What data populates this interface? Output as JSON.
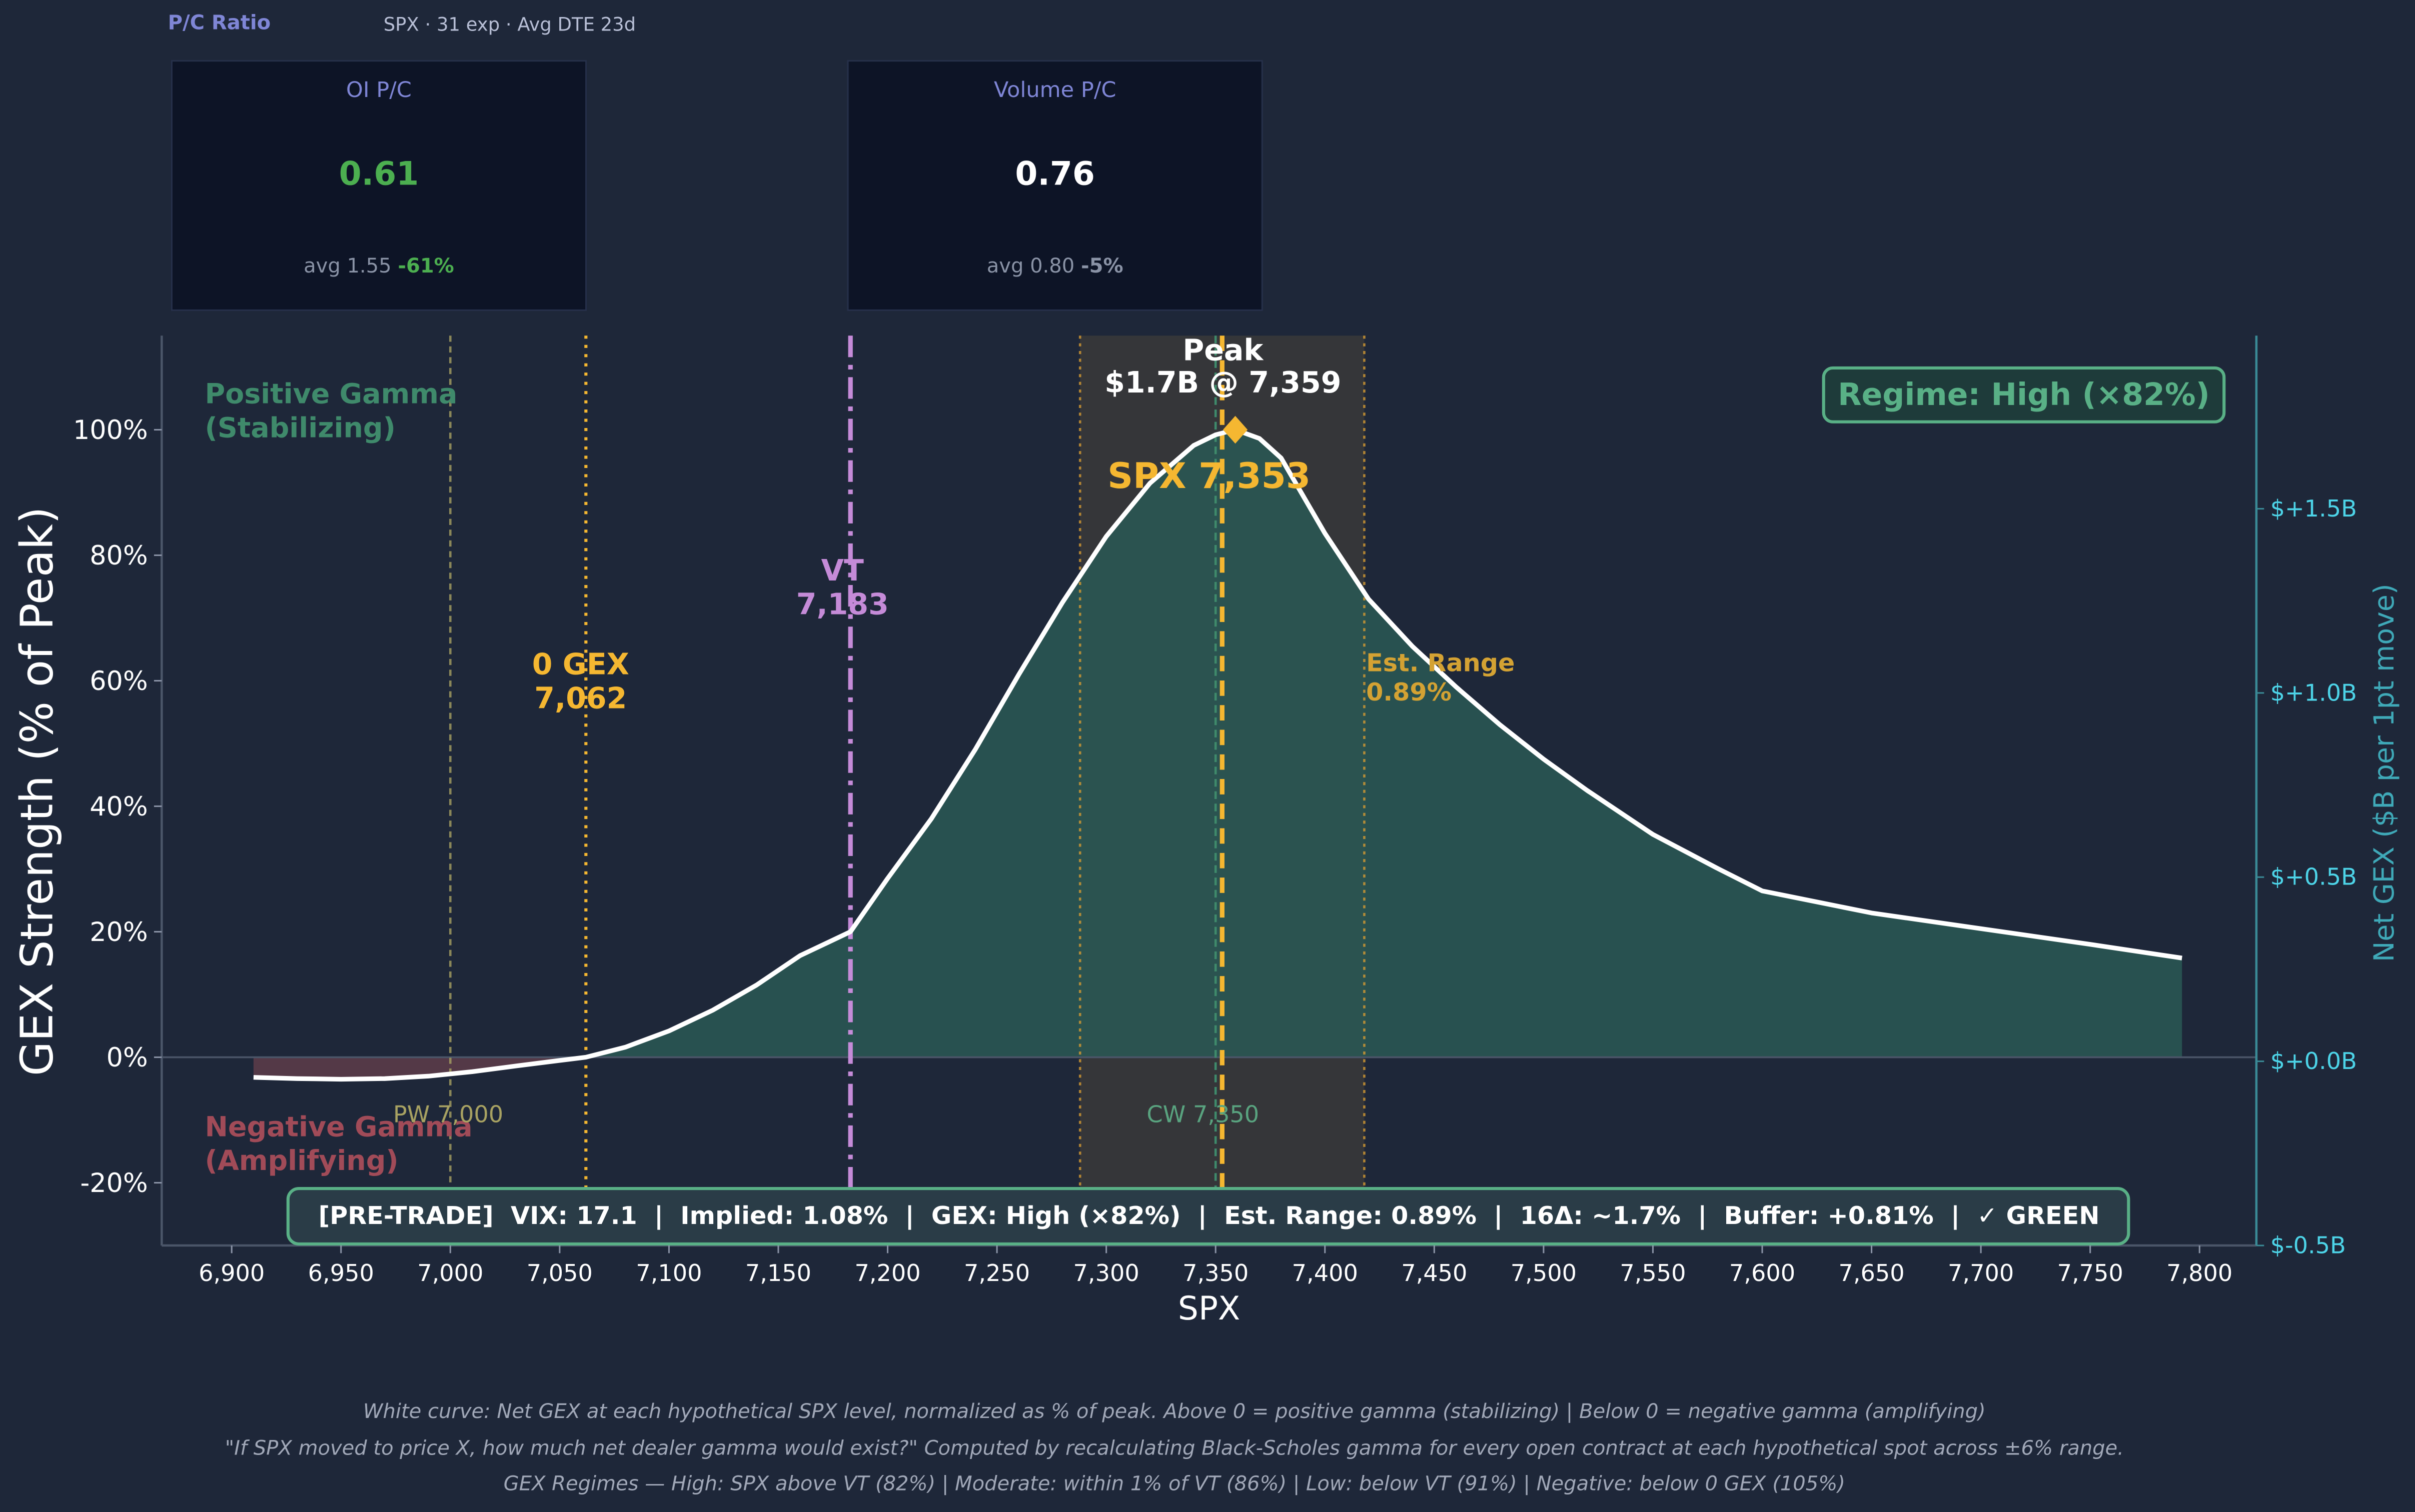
{
  "pc": {
    "title": "P/C Ratio",
    "subtitle": "SPX · 31 exp · Avg DTE 23d",
    "cards": [
      {
        "label": "OI P/C",
        "value": "0.61",
        "avg": "avg 1.55",
        "change": "-61%",
        "value_color": "#4caf50",
        "change_color": "#4caf50"
      },
      {
        "label": "Volume P/C",
        "value": "0.76",
        "avg": "avg 0.80",
        "change": "-5%",
        "value_color": "#ffffff",
        "change_color": "#8a93a6"
      }
    ]
  },
  "chart_data": {
    "type": "area",
    "xlabel": "SPX",
    "ylabel": "GEX Strength (% of Peak)",
    "y2label": "Net GEX ($B per 1pt move)",
    "xlim": [
      6868,
      7826
    ],
    "ylim": [
      -30,
      115
    ],
    "y2lim": [
      -0.5,
      1.97
    ],
    "xticks": [
      6900,
      6950,
      7000,
      7050,
      7100,
      7150,
      7200,
      7250,
      7300,
      7350,
      7400,
      7450,
      7500,
      7550,
      7600,
      7650,
      7700,
      7750,
      7800
    ],
    "xtick_labels": [
      "6,900",
      "6,950",
      "7,000",
      "7,050",
      "7,100",
      "7,150",
      "7,200",
      "7,250",
      "7,300",
      "7,350",
      "7,400",
      "7,450",
      "7,500",
      "7,550",
      "7,600",
      "7,650",
      "7,700",
      "7,750",
      "7,800"
    ],
    "yticks": [
      -20,
      0,
      20,
      40,
      60,
      80,
      100
    ],
    "ytick_labels": [
      "-20%",
      "0%",
      "20%",
      "40%",
      "60%",
      "80%",
      "100%"
    ],
    "y2ticks": [
      -0.5,
      0,
      0.5,
      1.0,
      1.5
    ],
    "y2tick_labels": [
      "$-0.5B",
      "$+0.0B",
      "$+0.5B",
      "$+1.0B",
      "$+1.5B"
    ],
    "series": [
      {
        "x": [
          6910,
          6930,
          6950,
          6970,
          6990,
          7010,
          7030,
          7050,
          7062,
          7080,
          7100,
          7120,
          7140,
          7160,
          7183,
          7200,
          7220,
          7240,
          7260,
          7280,
          7300,
          7320,
          7340,
          7350,
          7359,
          7370,
          7380,
          7400,
          7420,
          7440,
          7460,
          7480,
          7500,
          7520,
          7550,
          7580,
          7600,
          7650,
          7700,
          7750,
          7792
        ],
        "y": [
          -3.2,
          -3.4,
          -3.5,
          -3.4,
          -3.0,
          -2.3,
          -1.4,
          -0.5,
          0,
          1.6,
          4.2,
          7.5,
          11.5,
          16.2,
          20,
          28.5,
          38,
          49,
          61,
          72.5,
          83,
          91.5,
          97.5,
          99.2,
          100,
          98.6,
          95.5,
          83.5,
          73,
          65.5,
          59,
          53,
          47.5,
          42.5,
          35.5,
          30,
          26.5,
          23,
          20.5,
          18,
          15.8
        ]
      }
    ],
    "gex_zero": {
      "label": "0 GEX",
      "value_label": "7,062",
      "x": 7062
    },
    "vt": {
      "label": "VT",
      "value_label": "7,183",
      "x": 7183
    },
    "pw": {
      "label": "PW 7,000",
      "x": 7000
    },
    "cw": {
      "label": "CW 7,350",
      "x": 7350
    },
    "spot": {
      "label": "SPX 7,353",
      "x": 7353
    },
    "peak": {
      "label": "Peak",
      "value_label": "$1.7B @ 7,359",
      "x": 7359,
      "y": 100
    },
    "est_range": {
      "label": "Est. Range",
      "value_label": "0.89%",
      "x0": 7288,
      "x1": 7418
    },
    "regime": "Regime: High (×82%)",
    "zone_pos": [
      "Positive Gamma",
      "(Stabilizing)"
    ],
    "zone_neg": [
      "Negative Gamma",
      "(Amplifying)"
    ],
    "pretrade": "[PRE-TRADE]  VIX: 17.1  |  Implied: 1.08%  |  GEX: High (×82%)  |  Est. Range: 0.89%  |  16Δ: ~1.7%  |  Buffer: +0.81%  |  ✓ GREEN"
  },
  "colors": {
    "curve": "#ffffff",
    "fill_pos": "#2a5955",
    "fill_neg": "#5a3c49",
    "gold": "#f5b731",
    "violet": "#c58bd8",
    "green": "#59b086",
    "cyan": "#4dd4e8",
    "axis": "#4a5568"
  },
  "footer": [
    "White curve: Net GEX at each hypothetical SPX level, normalized as % of peak.  Above 0 = positive gamma (stabilizing)  |  Below 0 = negative gamma (amplifying)",
    "\"If SPX moved to price X, how much net dealer gamma would exist?\" Computed by recalculating Black-Scholes gamma for every open contract at each hypothetical spot across ±6% range.",
    "GEX Regimes — High: SPX above VT (82%)  |  Moderate: within 1% of VT (86%)  |  Low: below VT (91%)  |  Negative: below 0 GEX (105%)"
  ]
}
